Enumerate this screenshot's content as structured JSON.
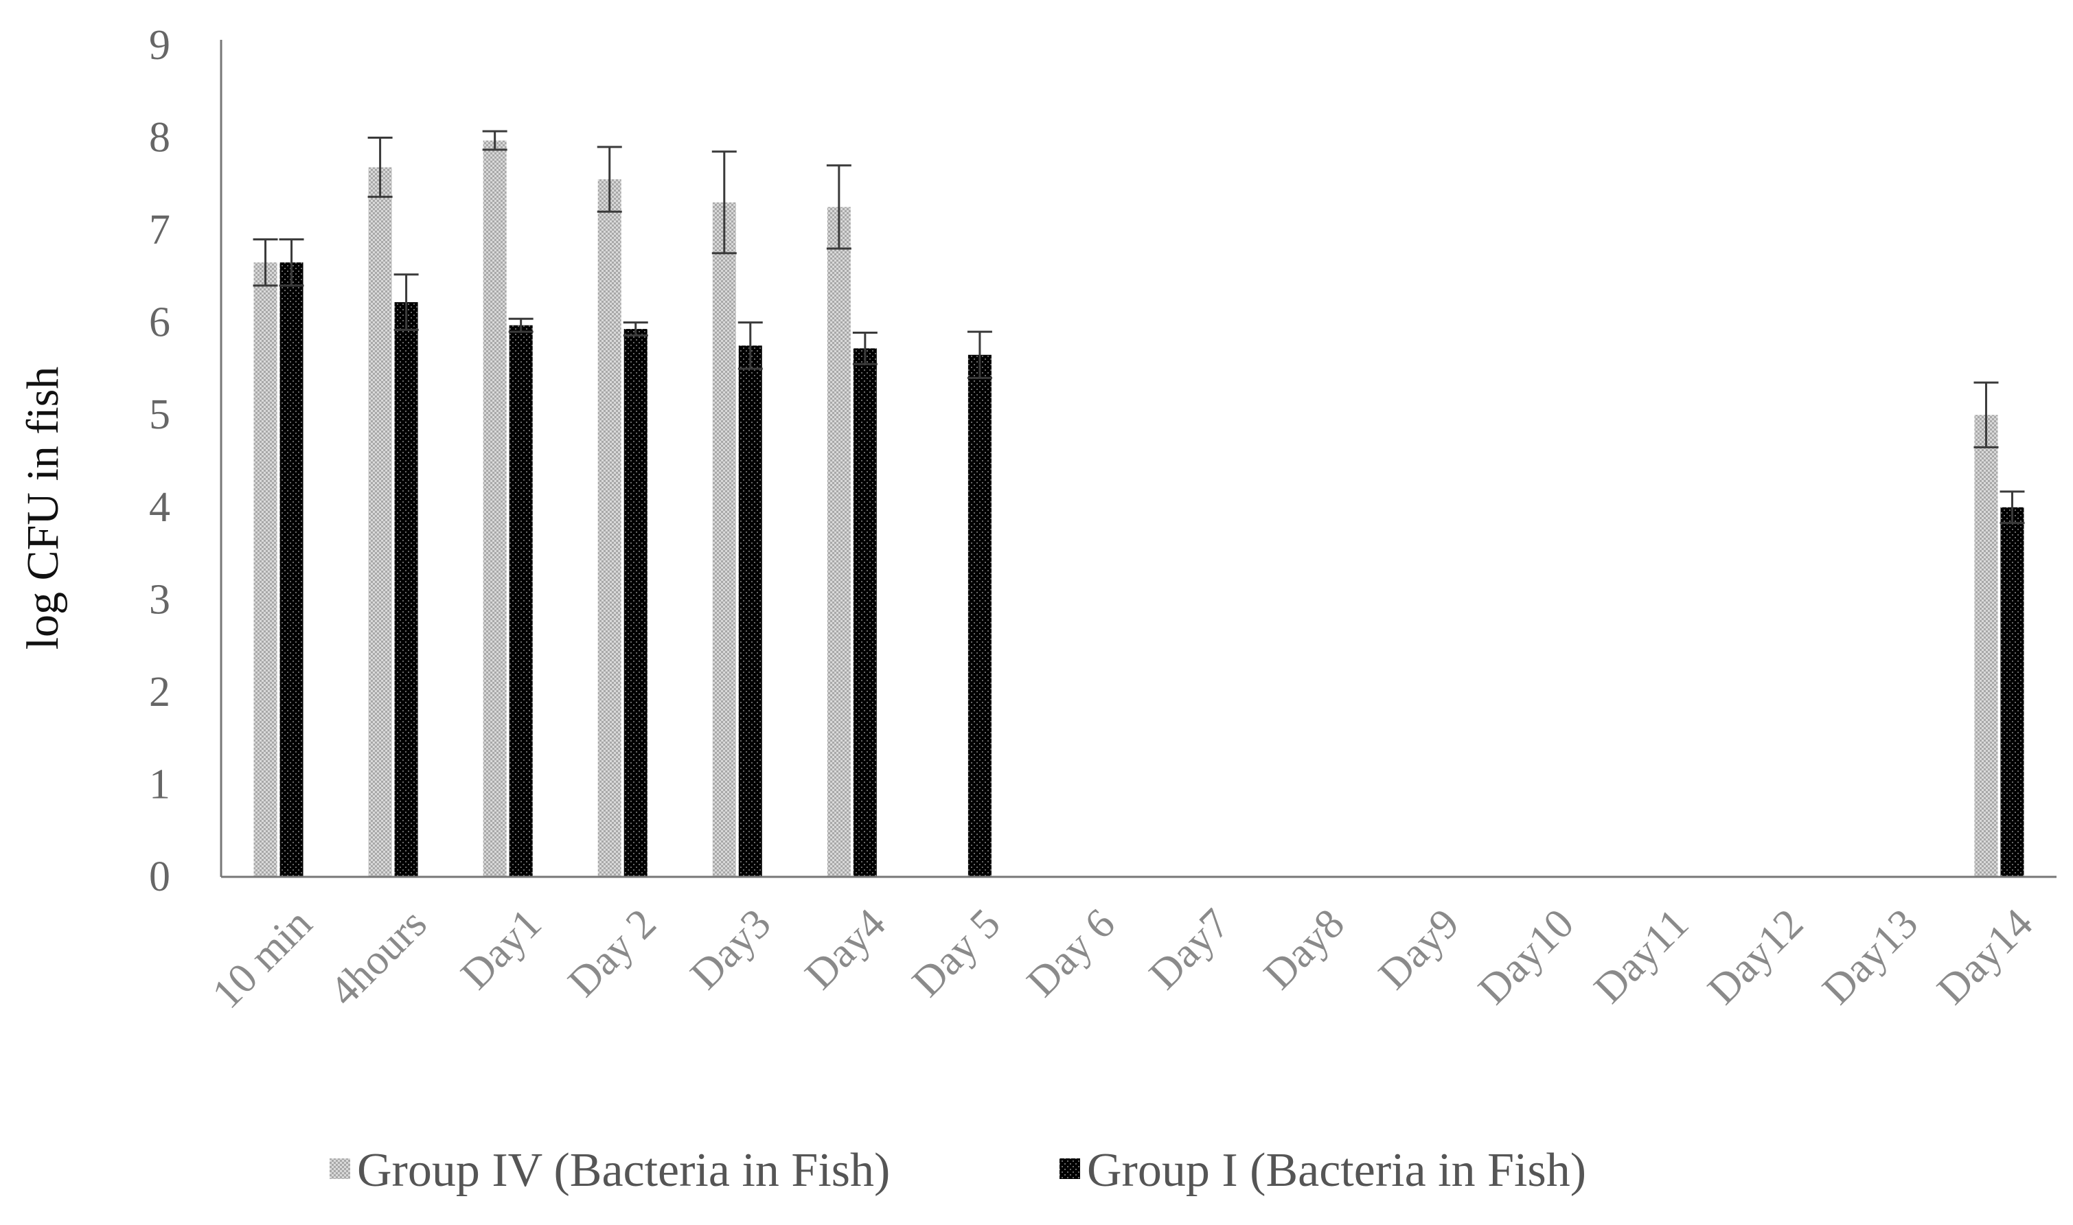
{
  "chart_data": {
    "type": "bar",
    "xlabel": "",
    "ylabel": "log CFU in fish",
    "ylim": [
      0,
      9
    ],
    "yticks": [
      "0",
      "1",
      "2",
      "3",
      "4",
      "5",
      "6",
      "7",
      "8",
      "9"
    ],
    "grid": false,
    "legend_position": "bottom",
    "categories": [
      "10 min",
      "4hours",
      "Day1",
      "Day 2",
      "Day3",
      "Day4",
      "Day 5",
      "Day 6",
      "Day7",
      "Day8",
      "Day9",
      "Day10",
      "Day11",
      "Day12",
      "Day13",
      "Day14"
    ],
    "series": [
      {
        "name": "Group IV (Bacteria in Fish)",
        "color": "#c8c8c8",
        "values": [
          6.65,
          7.68,
          7.97,
          7.55,
          7.3,
          7.25,
          0,
          0,
          0,
          0,
          0,
          0,
          0,
          0,
          0,
          5.0
        ],
        "errors": [
          0.25,
          0.32,
          0.1,
          0.35,
          0.55,
          0.45,
          0,
          0,
          0,
          0,
          0,
          0,
          0,
          0,
          0,
          0.35
        ]
      },
      {
        "name": "Group I (Bacteria in Fish)",
        "color": "#000000",
        "values": [
          6.65,
          6.22,
          5.97,
          5.93,
          5.75,
          5.72,
          5.65,
          0,
          0,
          0,
          0,
          0,
          0,
          0,
          0,
          4.0
        ],
        "errors": [
          0.25,
          0.3,
          0.07,
          0.07,
          0.25,
          0.17,
          0.25,
          0,
          0,
          0,
          0,
          0,
          0,
          0,
          0,
          0.17
        ]
      }
    ]
  }
}
